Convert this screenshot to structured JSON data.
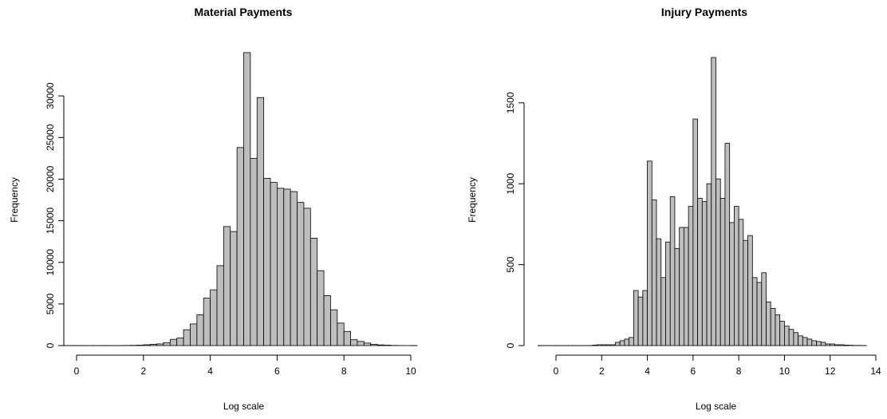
{
  "chart_data": [
    {
      "type": "bar",
      "title": "Material Payments",
      "xlabel": "Log scale",
      "ylabel": "Frequency",
      "xlim": [
        0,
        10
      ],
      "ylim": [
        0,
        35000
      ],
      "x_ticks": [
        0,
        2,
        4,
        6,
        8,
        10
      ],
      "y_ticks": [
        0,
        5000,
        10000,
        15000,
        20000,
        25000,
        30000
      ],
      "bin_width": 0.2,
      "bin_start": -0.4,
      "values": [
        0,
        0,
        0,
        0,
        0,
        0,
        0,
        0,
        0,
        20,
        30,
        50,
        100,
        150,
        200,
        350,
        750,
        900,
        1900,
        2600,
        3700,
        5700,
        6700,
        9600,
        14300,
        13700,
        23800,
        35200,
        22500,
        29800,
        20100,
        19600,
        18900,
        18800,
        18500,
        17200,
        16500,
        12900,
        9000,
        6000,
        4300,
        2700,
        1700,
        700,
        500,
        300,
        150,
        80,
        50,
        20,
        10,
        5,
        0
      ]
    },
    {
      "type": "bar",
      "title": "Injury Payments",
      "xlabel": "Log scale",
      "ylabel": "Frequency",
      "xlim": [
        0,
        14
      ],
      "ylim": [
        0,
        1800
      ],
      "x_ticks": [
        0,
        2,
        4,
        6,
        8,
        10,
        12,
        14
      ],
      "y_ticks": [
        0,
        500,
        1000,
        1500
      ],
      "bin_width": 0.2,
      "bin_start": -0.8,
      "values": [
        0,
        0,
        0,
        0,
        0,
        0,
        0,
        0,
        0,
        0,
        0,
        0,
        3,
        5,
        5,
        5,
        5,
        20,
        30,
        40,
        50,
        340,
        300,
        340,
        1140,
        900,
        660,
        420,
        640,
        920,
        600,
        730,
        730,
        860,
        1400,
        910,
        890,
        1000,
        1780,
        1030,
        910,
        1250,
        760,
        860,
        780,
        650,
        680,
        420,
        390,
        450,
        270,
        230,
        190,
        150,
        120,
        100,
        80,
        60,
        50,
        40,
        30,
        25,
        20,
        10,
        10,
        5,
        5,
        3,
        2,
        1,
        1,
        0
      ]
    }
  ]
}
